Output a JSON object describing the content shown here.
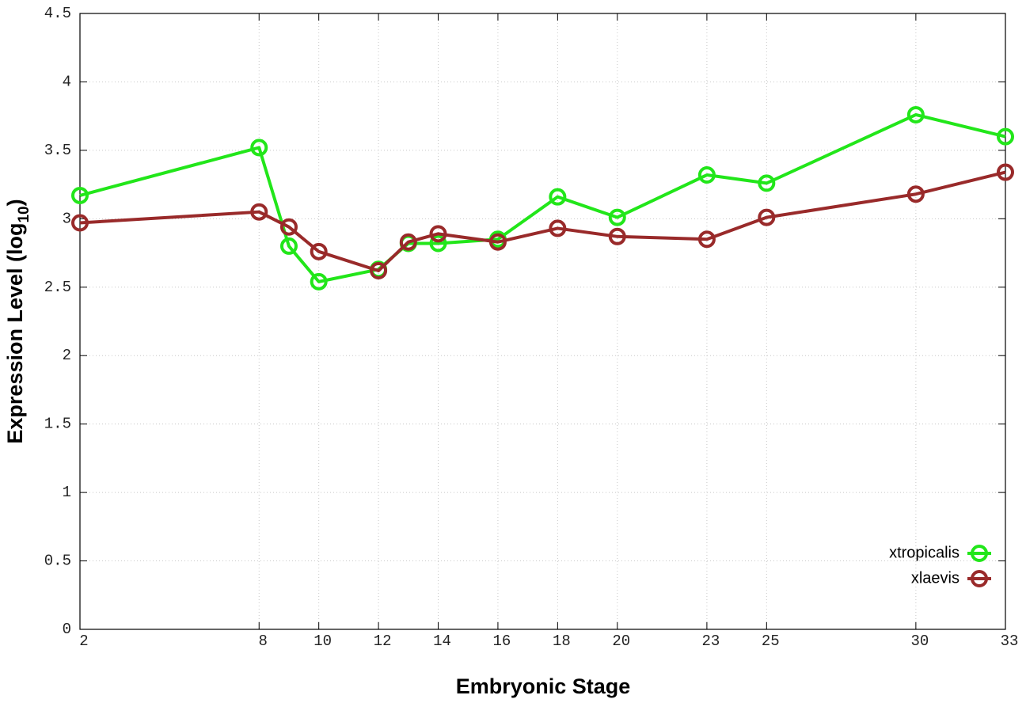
{
  "chart_data": {
    "type": "line",
    "x_label": "Embryonic Stage",
    "y_label_parts": [
      "Expression Level (log",
      "10",
      ")"
    ],
    "x": [
      2,
      8,
      9,
      10,
      12,
      13,
      14,
      16,
      18,
      20,
      23,
      25,
      30,
      33
    ],
    "series": [
      {
        "name": "xtropicalis",
        "color": "#22e61a",
        "values": [
          3.17,
          3.52,
          2.8,
          2.54,
          2.63,
          2.82,
          2.82,
          2.85,
          3.16,
          3.01,
          3.32,
          3.26,
          3.76,
          3.6
        ]
      },
      {
        "name": "xlaevis",
        "color": "#992a2a",
        "values": [
          2.97,
          3.05,
          2.94,
          2.76,
          2.62,
          2.83,
          2.89,
          2.83,
          2.93,
          2.87,
          2.85,
          3.01,
          3.18,
          3.34
        ]
      }
    ],
    "xlim": [
      2,
      33
    ],
    "xticks": [
      2,
      8,
      10,
      12,
      14,
      16,
      18,
      20,
      23,
      25,
      30,
      33
    ],
    "ylim": [
      0,
      4.5
    ],
    "yticks": [
      0,
      0.5,
      1,
      1.5,
      2,
      2.5,
      3,
      3.5,
      4,
      4.5
    ],
    "grid": true,
    "legend_position": "bottom right"
  }
}
